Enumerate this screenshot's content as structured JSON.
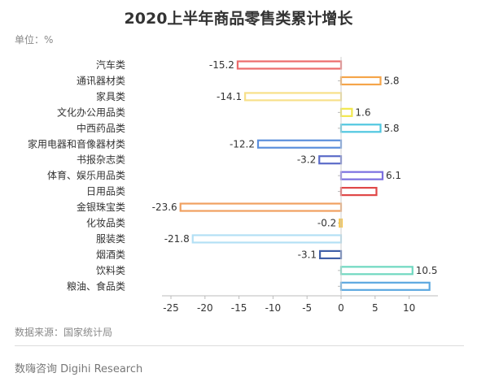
{
  "title": "2020上半年商品零售类累计增长",
  "unit_label": "单位：%",
  "source": "数据来源：国家统计局",
  "footer": "数嗨咨询 Digihi Research",
  "chart_data": {
    "type": "bar",
    "orientation": "horizontal",
    "categories": [
      "汽车类",
      "通讯器材类",
      "家具类",
      "文化办公用品类",
      "中西药品类",
      "家用电器和音像器材类",
      "书报杂志类",
      "体育、娱乐用品类",
      "日用品类",
      "金银珠宝类",
      "化妆品类",
      "服装类",
      "烟酒类",
      "饮料类",
      "粮油、食品类"
    ],
    "values": [
      -15.2,
      5.8,
      -14.1,
      1.6,
      5.8,
      -12.2,
      -3.2,
      6.1,
      5.2,
      -23.6,
      -0.2,
      -21.8,
      -3.1,
      10.5,
      13
    ],
    "labels": [
      "-15.2",
      "5.8",
      "-14.1",
      "1.6",
      "5.8",
      "-12.2",
      "-3.2",
      "6.1",
      "",
      "-23.6",
      "-0.2",
      "-21.8",
      "-3.1",
      "10.5",
      ""
    ],
    "colors": [
      "#ec6b6b",
      "#f5a54a",
      "#f7e08a",
      "#f2e84e",
      "#4fc7e0",
      "#5b8fdc",
      "#5b6bc8",
      "#7b6fe0",
      "#e04848",
      "#f0a060",
      "#f5c242",
      "#b3e0f5",
      "#3f5fa8",
      "#6fd8c0",
      "#5ba8e0"
    ],
    "xlim": [
      -25,
      14
    ],
    "xticks": [
      -25,
      -20,
      -15,
      -10,
      -5,
      0,
      5,
      10
    ],
    "tick_labels": [
      "-25",
      "-20",
      "-15",
      "-10",
      "-5",
      "0",
      "5",
      "10"
    ]
  }
}
